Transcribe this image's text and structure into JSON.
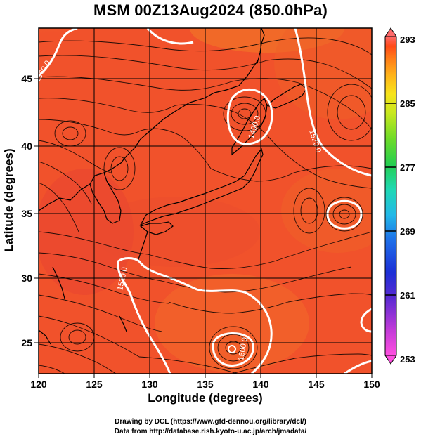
{
  "title": "MSM 00Z13Aug2024 (850.0hPa)",
  "axes": {
    "xlabel": "Longitude (degrees)",
    "ylabel": "Latitude  (degrees)",
    "xticks": [
      "120",
      "125",
      "130",
      "135",
      "140",
      "145",
      "150"
    ],
    "yticks": [
      "25",
      "30",
      "35",
      "40",
      "45"
    ],
    "xlim": [
      120,
      150
    ],
    "ylim": [
      22.5,
      47.6
    ]
  },
  "colorbar": {
    "ticks": [
      "253",
      "261",
      "269",
      "277",
      "285",
      "293"
    ],
    "range": [
      253,
      293
    ],
    "colors": [
      "#ff4fe0",
      "#c23bd8",
      "#6a2cd0",
      "#1c2fd6",
      "#1e6ee8",
      "#22b8e8",
      "#1fd8b4",
      "#25cf4f",
      "#6fdb28",
      "#c8e81f",
      "#f7e31b",
      "#ffb21a",
      "#ff7d18",
      "#ff4a18",
      "#ff6a6a"
    ]
  },
  "contours": [
    {
      "label": "1520.0"
    },
    {
      "label": "1520.0"
    },
    {
      "label": "1500.0"
    },
    {
      "label": "1490.0"
    },
    {
      "label": "1560.0"
    }
  ],
  "credits": {
    "line1": "Drawing by DCL (https://www.gfd-dennou.org/library/dcl/)",
    "line2": "Data from http://database.rish.kyoto-u.ac.jp/arch/jmadata/"
  }
}
